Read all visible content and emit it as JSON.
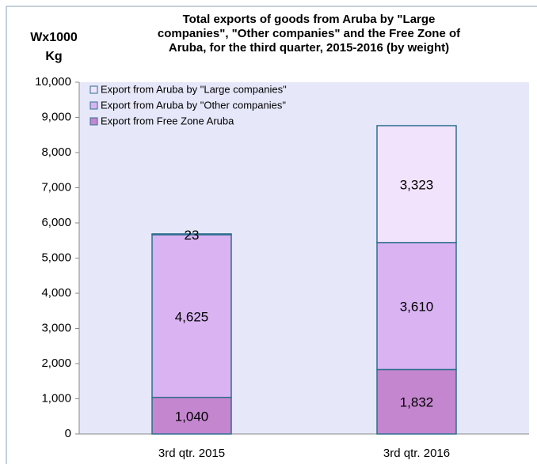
{
  "chart_data": {
    "type": "stacked_bar",
    "title": "Total exports of goods from Aruba by \"Large companies\", \"Other companies\" and the Free Zone of Aruba, for the third quarter, 2015-2016 (by weight)",
    "y_label": "Wx1000 Kg",
    "categories": [
      "3rd qtr. 2015",
      "3rd qtr. 2016"
    ],
    "series": [
      {
        "name": "Export from Free Zone Aruba",
        "color": "#c586d0",
        "values": [
          1040,
          1832
        ],
        "value_labels": [
          "1,040",
          "1,832"
        ]
      },
      {
        "name": "Export from Aruba by \"Other companies\"",
        "color": "#d9b3f2",
        "values": [
          4625,
          3610
        ],
        "value_labels": [
          "4,625",
          "3,610"
        ]
      },
      {
        "name": "Export from Aruba by \"Large companies\"",
        "color": "#f1e3fb",
        "values": [
          23,
          3323
        ],
        "value_labels": [
          "23",
          "3,323"
        ]
      }
    ],
    "ylim": [
      0,
      10000
    ],
    "yticks": [
      0,
      {
        "value": 1000,
        "label": "1,000"
      },
      {
        "value": 2000,
        "label": "2,000"
      },
      {
        "value": 3000,
        "label": "3,000"
      },
      {
        "value": 4000,
        "label": "4,000"
      },
      {
        "value": 5000,
        "label": "5,000"
      },
      {
        "value": 6000,
        "label": "6,000"
      },
      {
        "value": 7000,
        "label": "7,000"
      },
      {
        "value": 8000,
        "label": "8,000"
      },
      {
        "value": 9000,
        "label": "9,000"
      },
      {
        "value": 10000,
        "label": "10,000"
      }
    ],
    "legend": "top-left"
  }
}
